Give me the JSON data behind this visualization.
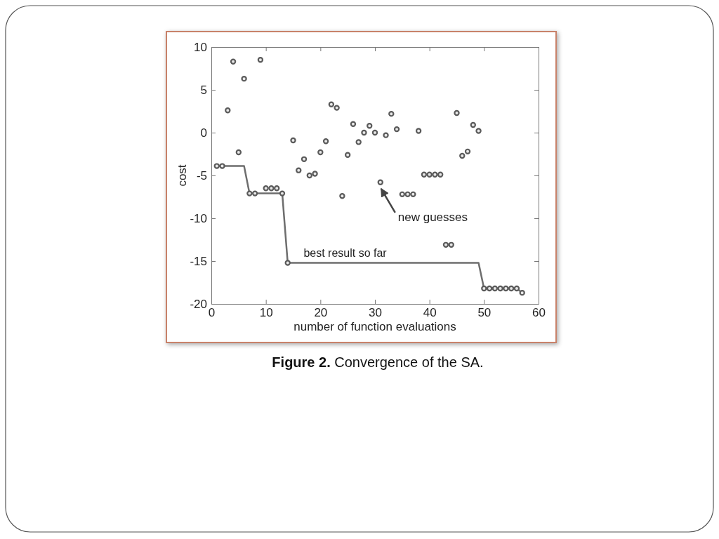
{
  "chart_data": {
    "type": "scatter",
    "xlabel": "number of function evaluations",
    "ylabel": "cost",
    "xlim": [
      0,
      60
    ],
    "xticks": [
      0,
      10,
      20,
      30,
      40,
      50,
      60
    ],
    "ylim": [
      -20,
      10
    ],
    "yticks": [
      -20,
      -15,
      -10,
      -5,
      0,
      5,
      10
    ],
    "grid": false,
    "marker": "circle",
    "series": [
      {
        "type": "line",
        "color": "#6e6e6e",
        "marker": "none",
        "x": [
          1,
          6,
          7,
          13,
          14,
          49,
          50,
          56,
          57
        ],
        "values": [
          -3.9,
          -3.9,
          -7.1,
          -7.1,
          -15.2,
          -15.2,
          -18.2,
          -18.2,
          -18.7
        ]
      },
      {
        "color": "#5a5a5a",
        "x": [
          1,
          2,
          3,
          4,
          5,
          6,
          7,
          8,
          9,
          10,
          11,
          12,
          13,
          14,
          15,
          16,
          17,
          18,
          19,
          20,
          21,
          22,
          23,
          24,
          25,
          26,
          27,
          28,
          29,
          30,
          31,
          32,
          33,
          34,
          35,
          36,
          37,
          38,
          39,
          40,
          41,
          42,
          43,
          44,
          45,
          46,
          47,
          48,
          49,
          50,
          51,
          52,
          53,
          54,
          55,
          56,
          57
        ],
        "values": [
          -3.9,
          -3.9,
          2.6,
          8.3,
          -2.3,
          6.3,
          -7.1,
          -7.1,
          8.5,
          -6.5,
          -6.5,
          -6.5,
          -7.1,
          -15.2,
          -0.9,
          -4.4,
          -3.1,
          -5.0,
          -4.8,
          -2.3,
          -1.0,
          3.3,
          2.9,
          -7.4,
          -2.6,
          1.0,
          -1.1,
          0.0,
          0.8,
          0.0,
          -5.8,
          -0.3,
          2.2,
          0.4,
          -7.2,
          -7.2,
          -7.2,
          0.2,
          -4.9,
          -4.9,
          -4.9,
          -4.9,
          -13.1,
          -13.1,
          2.3,
          -2.7,
          -2.2,
          0.9,
          0.2,
          -18.2,
          -18.2,
          -18.2,
          -18.2,
          -18.2,
          -18.2,
          -18.2,
          -18.7
        ]
      }
    ],
    "annotations": [
      {
        "text": "new guesses",
        "x": 31,
        "y": -5.8
      },
      {
        "text": "best result so far",
        "x": 24,
        "y": -15.2
      },
      "Figure 2. Convergence of the SA."
    ]
  }
}
